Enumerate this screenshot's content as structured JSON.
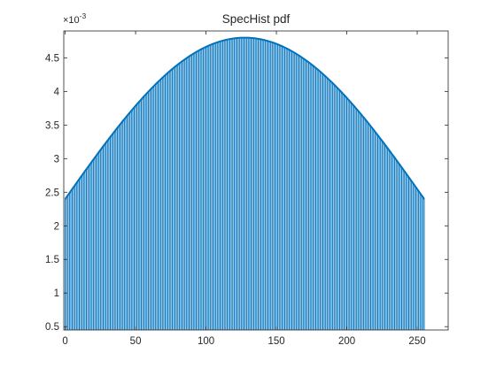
{
  "chart_data": {
    "type": "bar",
    "title": "SpecHist pdf",
    "xlabel": "",
    "ylabel": "",
    "xlim": [
      -1,
      272
    ],
    "ylim": [
      0.00045,
      0.0049
    ],
    "y_exponent_label": "×10",
    "y_exponent_power": "-3",
    "x_ticks": [
      0,
      50,
      100,
      150,
      200,
      250
    ],
    "x_tick_labels": [
      "0",
      "50",
      "100",
      "150",
      "200",
      "250"
    ],
    "y_ticks": [
      0.0005,
      0.001,
      0.0015,
      0.002,
      0.0025,
      0.003,
      0.0035,
      0.004,
      0.0045
    ],
    "y_tick_labels": [
      "0.5",
      "1",
      "1.5",
      "2",
      "2.5",
      "3",
      "3.5",
      "4",
      "4.5"
    ],
    "grid": false,
    "bar_color": "#0072BD",
    "axis_color": "#262626",
    "x_start": 0,
    "x_end": 255,
    "y_edge": 0.0024,
    "y_peak": 0.0048,
    "peak_x": 127.5
  }
}
